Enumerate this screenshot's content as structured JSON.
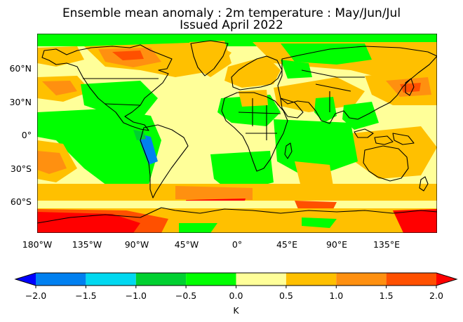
{
  "title": {
    "line1": "Ensemble mean anomaly : 2m temperature : May/Jun/Jul",
    "line2": "Issued April 2022"
  },
  "map": {
    "lon_ticks": [
      "180°W",
      "135°W",
      "90°W",
      "45°W",
      "0°",
      "45°E",
      "90°E",
      "135°E"
    ],
    "lat_ticks": [
      "60°N",
      "30°N",
      "0°",
      "30°S",
      "60°S"
    ]
  },
  "colorbar": {
    "levels": [
      "−2.0",
      "−1.5",
      "−1.0",
      "−0.5",
      "0.0",
      "0.5",
      "1.0",
      "1.5",
      "2.0"
    ],
    "unit": "K",
    "colors": [
      "#0000ff",
      "#0080f0",
      "#00d8f0",
      "#00d030",
      "#00ff00",
      "#ffff99",
      "#ffc000",
      "#ff9010",
      "#ff5000",
      "#ff0000"
    ]
  }
}
